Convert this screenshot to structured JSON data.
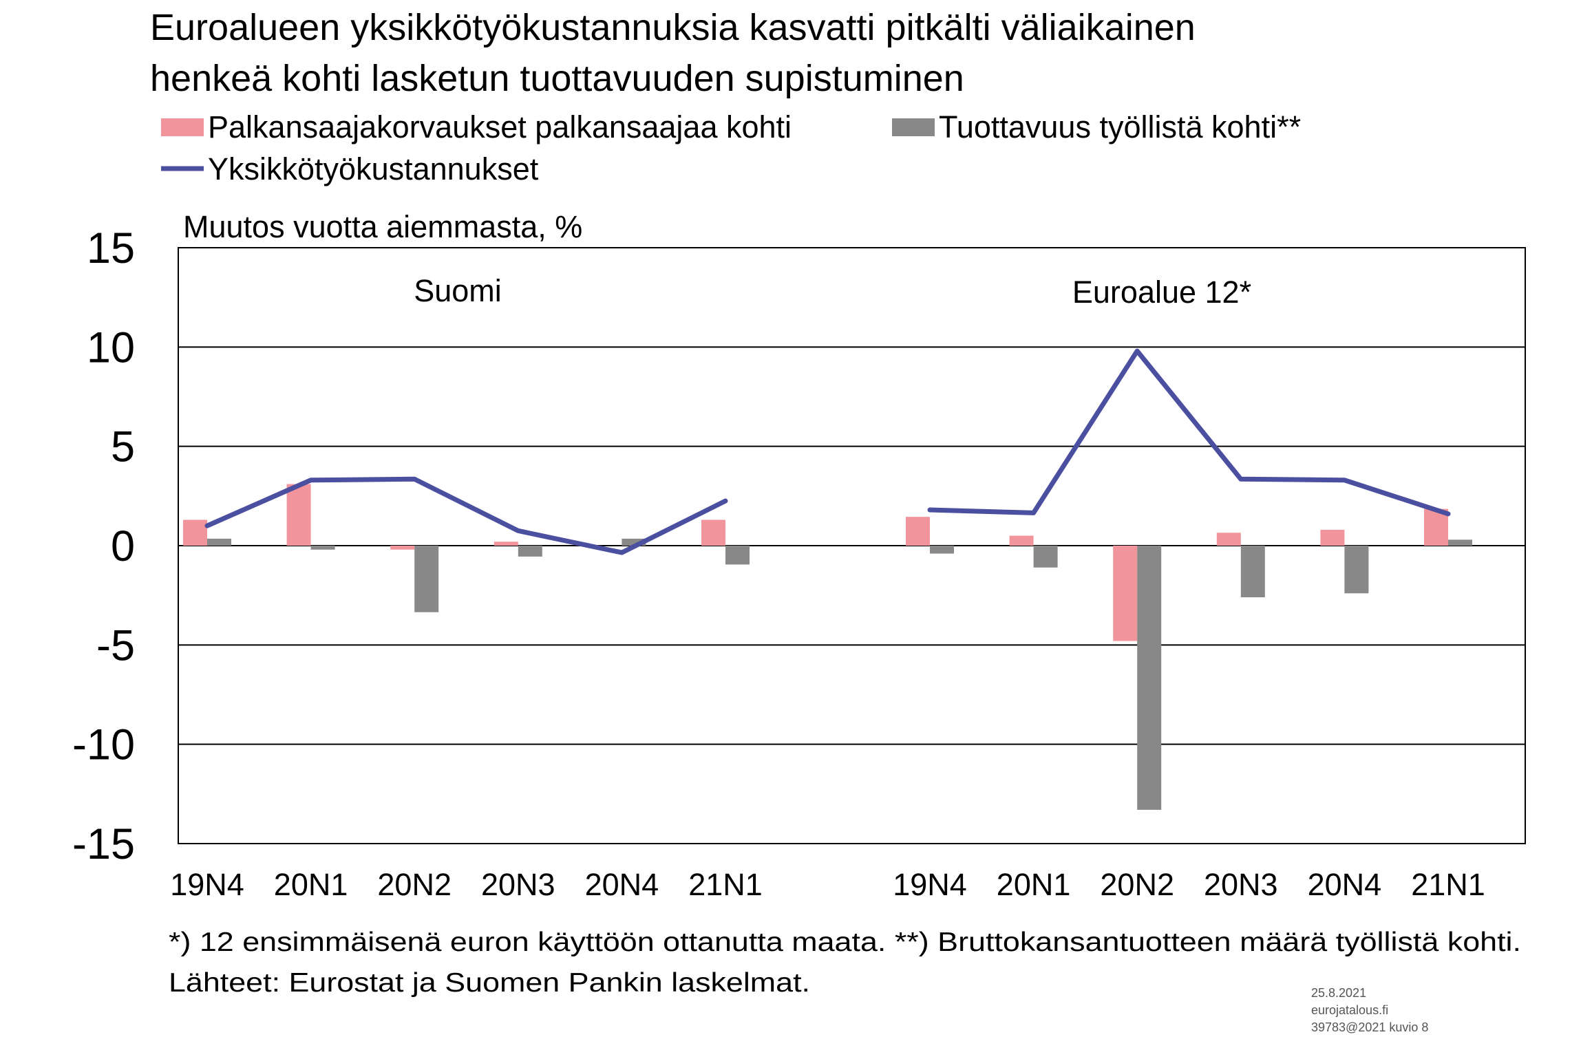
{
  "title_lines": [
    "Euroalueen yksikkötyökustannuksia kasvatti pitkälti väliaikainen",
    "henkeä kohti lasketun tuottavuuden supistuminen"
  ],
  "chart_data": {
    "type": "bar",
    "ylabel": "Muutos vuotta aiemmasta, %",
    "ylim": [
      -15,
      15
    ],
    "yticks": [
      15,
      10,
      5,
      0,
      -5,
      -10,
      -15
    ],
    "grid": true,
    "legend_position": "top",
    "panels": [
      {
        "label": "Suomi",
        "categories": [
          "19N4",
          "20N1",
          "20N2",
          "20N3",
          "20N4",
          "21N1"
        ],
        "series": [
          {
            "name": "Palkansaajakorvaukset palkansaajaa kohti",
            "kind": "bar",
            "values": [
              1.3,
              3.1,
              -0.2,
              0.2,
              0.0,
              1.3
            ]
          },
          {
            "name": "Tuottavuus työllistä kohti**",
            "kind": "bar",
            "values": [
              0.35,
              -0.2,
              -3.35,
              -0.55,
              0.35,
              -0.95
            ]
          },
          {
            "name": "Yksikkötyökustannukset",
            "kind": "line",
            "values": [
              1.0,
              3.3,
              3.35,
              0.75,
              -0.35,
              2.25
            ]
          }
        ]
      },
      {
        "label": "Euroalue 12*",
        "categories": [
          "19N4",
          "20N1",
          "20N2",
          "20N3",
          "20N4",
          "21N1"
        ],
        "series": [
          {
            "name": "Palkansaajakorvaukset palkansaajaa kohti",
            "kind": "bar",
            "values": [
              1.45,
              0.5,
              -4.8,
              0.65,
              0.8,
              1.85
            ]
          },
          {
            "name": "Tuottavuus työllistä kohti**",
            "kind": "bar",
            "values": [
              -0.4,
              -1.1,
              -13.3,
              -2.6,
              -2.4,
              0.3
            ]
          },
          {
            "name": "Yksikkötyökustannukset",
            "kind": "line",
            "values": [
              1.8,
              1.65,
              9.8,
              3.35,
              3.3,
              1.6
            ]
          }
        ]
      }
    ]
  },
  "legend": [
    {
      "label": "Palkansaajakorvaukset palkansaajaa kohti",
      "kind": "bar",
      "color": "#f2949b"
    },
    {
      "label": "Tuottavuus työllistä kohti**",
      "kind": "bar",
      "color": "#888888"
    },
    {
      "label": "Yksikkötyökustannukset",
      "kind": "line",
      "color": "#4b4fa0"
    }
  ],
  "colors": {
    "pay": "#f2949b",
    "prod": "#888888",
    "ulc": "#4b4fa0"
  },
  "footnote": "*) 12 ensimmäisenä euron käyttöön ottanutta maata. **) Bruttokansantuotteen määrä työllistä kohti.",
  "sources": "Lähteet: Eurostat ja Suomen Pankin laskelmat.",
  "meta": [
    "25.8.2021",
    "eurojatalous.fi",
    "39783@2021 kuvio 8"
  ]
}
